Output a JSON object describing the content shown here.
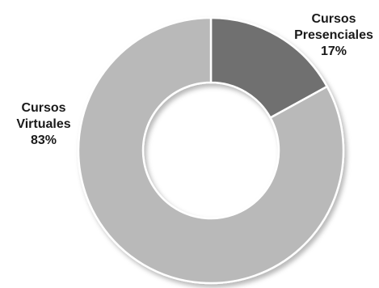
{
  "chart_data": {
    "type": "pie",
    "variant": "donut",
    "title": "",
    "categories": [
      "Cursos Presenciales",
      "Cursos Virtuales"
    ],
    "values": [
      17,
      83
    ],
    "value_unit": "%",
    "colors": [
      "#6f6f6f",
      "#b9b9b9"
    ],
    "start_angle_deg": 0,
    "direction": "clockwise",
    "legend": "none",
    "labels": [
      {
        "line1": "Cursos",
        "line2": "Presenciales",
        "percent": "17%"
      },
      {
        "line1": "Cursos",
        "line2": "Virtuales",
        "percent": "83%"
      }
    ]
  }
}
